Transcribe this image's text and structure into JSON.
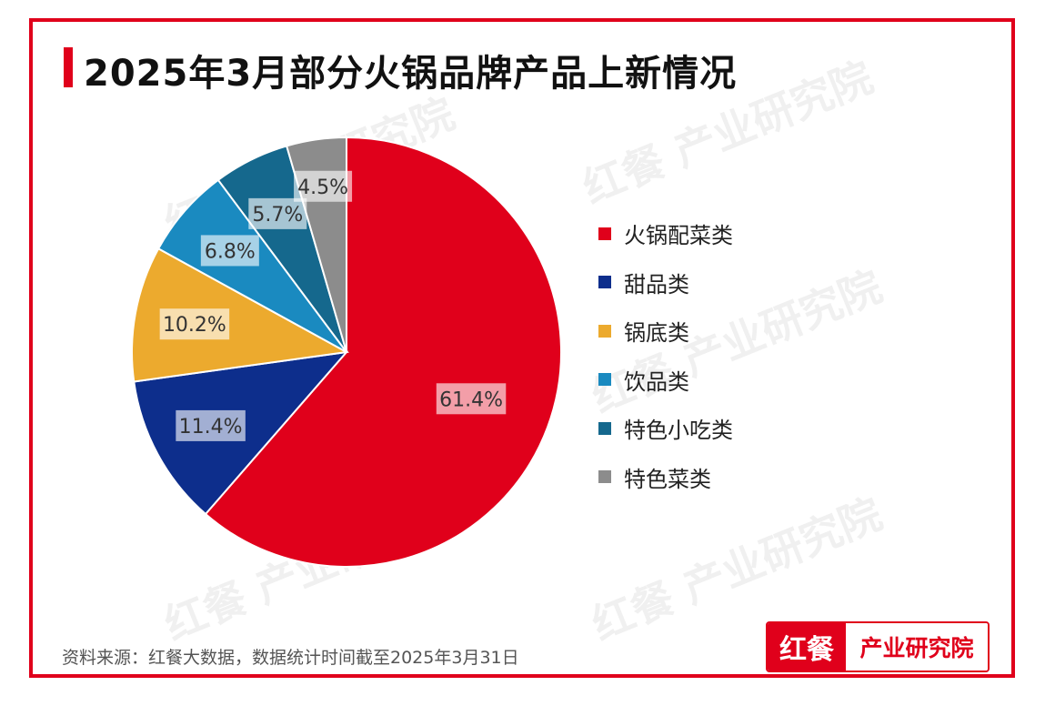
{
  "title": "2025年3月部分火锅品牌产品上新情况",
  "watermark": "红餐 产业研究院",
  "source": "资料来源：红餐大数据，数据统计时间截至2025年3月31日",
  "logo": {
    "left": "红餐",
    "right": "产业研究院"
  },
  "colors": {
    "accent": "#e0001b"
  },
  "chart_data": {
    "type": "pie",
    "title": "2025年3月部分火锅品牌产品上新情况",
    "categories": [
      "火锅配菜类",
      "甜品类",
      "锅底类",
      "饮品类",
      "特色小吃类",
      "特色菜类"
    ],
    "values": [
      61.4,
      11.4,
      10.2,
      6.8,
      5.7,
      4.5
    ],
    "labels": [
      "61.4%",
      "11.4%",
      "10.2%",
      "6.8%",
      "5.7%",
      "4.5%"
    ],
    "colors": [
      "#e0001b",
      "#0d2e8c",
      "#ecaa2e",
      "#1a8ac0",
      "#15688d",
      "#8c8c8c"
    ],
    "legend_position": "right"
  }
}
